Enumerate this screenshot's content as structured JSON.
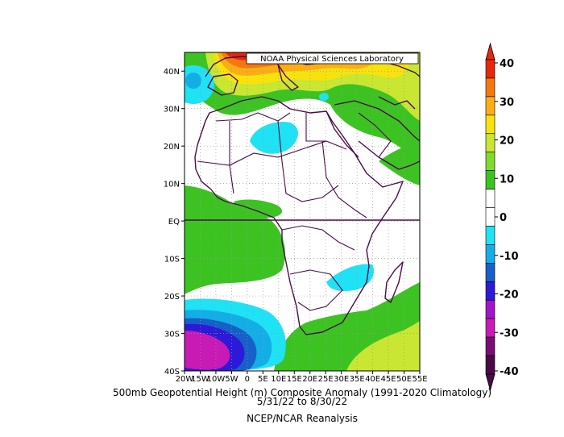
{
  "chart_data": {
    "type": "heatmap",
    "credit": "NOAA Physical Sciences Laboratory",
    "title": "500mb Geopotential Height (m) Composite Anomaly (1991-2020 Climatology)",
    "date_range": "5/31/22  to 8/30/22",
    "source": "NCEP/NCAR Reanalysis",
    "x_ticks": [
      "20W",
      "15W",
      "10W",
      "5W",
      "0",
      "5E",
      "10E",
      "15E",
      "20E",
      "25E",
      "30E",
      "35E",
      "40E",
      "45E",
      "50E",
      "55E"
    ],
    "y_ticks": [
      "40N",
      "30N",
      "20N",
      "10N",
      "EQ",
      "10S",
      "20S",
      "30S",
      "40S"
    ],
    "xlim": [
      -20,
      55
    ],
    "ylim": [
      -40,
      45
    ],
    "colorbar": {
      "ticks": [
        "40",
        "30",
        "20",
        "10",
        "0",
        "-10",
        "-20",
        "-30",
        "-40"
      ],
      "colors": [
        "#e8260a",
        "#f5780e",
        "#fbae14",
        "#f8e20d",
        "#c8e632",
        "#7fdc2a",
        "#3cc322",
        "#ffffff",
        "#ffffff",
        "#1fe2f5",
        "#14aee6",
        "#1660c8",
        "#2c1ad8",
        "#a314c8",
        "#c81ab4",
        "#7a0d72",
        "#4a0a48"
      ]
    },
    "regions": [
      {
        "label": "N Atlantic/Med positive",
        "value": 35
      },
      {
        "label": "Tropical Atlantic positive",
        "value": 10
      },
      {
        "label": "Sahara negative",
        "value": -8
      },
      {
        "label": "SE Africa negative",
        "value": -8
      },
      {
        "label": "South Atlantic low",
        "value": -35
      },
      {
        "label": "Southern Indian Ocean positive",
        "value": 15
      }
    ]
  }
}
